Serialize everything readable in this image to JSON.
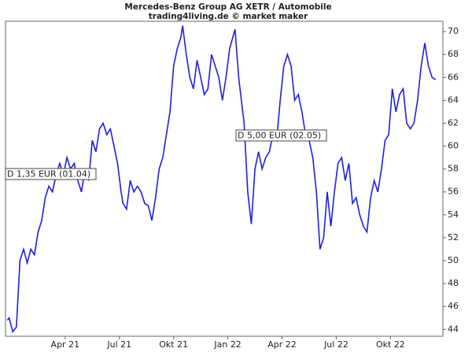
{
  "chart_data": {
    "type": "line",
    "title": "Mercedes-Benz Group AG XETR / Automobile",
    "subtitle": "trading4living.de © market maker",
    "x": [
      -0.2,
      -0.1,
      0.1,
      0.3,
      0.5,
      0.7,
      0.9,
      1.1,
      1.3,
      1.5,
      1.7,
      1.9,
      2.1,
      2.3,
      2.5,
      2.7,
      2.9,
      3.1,
      3.3,
      3.5,
      3.7,
      3.9,
      4.1,
      4.3,
      4.5,
      4.7,
      4.9,
      5.1,
      5.3,
      5.5,
      5.7,
      5.9,
      6.1,
      6.2,
      6.4,
      6.6,
      6.8,
      7.0,
      7.2,
      7.4,
      7.6,
      7.8,
      8.0,
      8.2,
      8.4,
      8.6,
      8.8,
      9.0,
      9.2,
      9.4,
      9.5,
      9.7,
      9.9,
      10.1,
      10.3,
      10.5,
      10.7,
      10.9,
      11.1,
      11.3,
      11.5,
      11.7,
      11.9,
      12.1,
      12.4,
      12.6,
      12.9,
      13.1,
      13.3,
      13.5,
      13.7,
      13.9,
      14.1,
      14.3,
      14.5,
      14.7,
      14.9,
      15.1,
      15.3,
      15.5,
      15.7,
      15.9,
      16.1,
      16.3,
      16.5,
      16.7,
      16.9,
      17.1,
      17.3,
      17.5,
      17.7,
      17.9,
      18.1,
      18.3,
      18.5,
      18.7,
      18.9,
      19.1,
      19.3,
      19.5,
      19.7,
      19.9,
      20.1,
      20.3,
      20.5,
      20.7,
      20.9,
      21.1,
      21.3,
      21.5,
      21.7,
      21.9,
      22.1,
      22.3,
      22.5,
      22.7,
      22.9,
      23.1,
      23.3,
      23.5
    ],
    "values": [
      44.8,
      45,
      43.8,
      44.2,
      50,
      51,
      49.8,
      51,
      50.5,
      52.5,
      53.5,
      55.5,
      56.5,
      56,
      57.5,
      58.5,
      57.5,
      59,
      58,
      58.5,
      57,
      56,
      58,
      57,
      60.5,
      59.5,
      61.5,
      62,
      61,
      61.5,
      60,
      58.5,
      56,
      55,
      54.5,
      57,
      56,
      56.5,
      56,
      55,
      54.8,
      53.5,
      55.5,
      58,
      59,
      61,
      63,
      67,
      68.5,
      69.5,
      70.5,
      68,
      66,
      65,
      67.5,
      66,
      64.5,
      65,
      68,
      67,
      66,
      64,
      66,
      68.5,
      70.2,
      66,
      62,
      56,
      53.2,
      58,
      59.5,
      58,
      59,
      59.5,
      61,
      60.5,
      64,
      67,
      68,
      67,
      64,
      64.5,
      63,
      61,
      60.5,
      59,
      56,
      51,
      52,
      56,
      53,
      56,
      58.5,
      59,
      57,
      58.5,
      55,
      55.5,
      54,
      53,
      52.5,
      55.5,
      57,
      56,
      58,
      60.5,
      61,
      65,
      63,
      64.5,
      65,
      62,
      61.5,
      62,
      64,
      67,
      69,
      67,
      66,
      65.8
    ],
    "color": "#1f1fe0",
    "xlim": [
      -0.3,
      23.9
    ],
    "xticks": [
      {
        "value": 3,
        "label": "Apr 21"
      },
      {
        "value": 6,
        "label": "Jul 21"
      },
      {
        "value": 9,
        "label": "Okt 21"
      },
      {
        "value": 12,
        "label": "Jan 22"
      },
      {
        "value": 15,
        "label": "Apr 22"
      },
      {
        "value": 18,
        "label": "Jul 22"
      },
      {
        "value": 21,
        "label": "Okt 22"
      }
    ],
    "ylim": [
      43.4,
      70.9
    ],
    "yticks": [
      44,
      46,
      48,
      50,
      52,
      54,
      56,
      58,
      60,
      62,
      64,
      66,
      68,
      70
    ],
    "annotations": [
      "D 1,35 EUR (01.04)",
      "D 5,00 EUR (02.05)"
    ]
  }
}
